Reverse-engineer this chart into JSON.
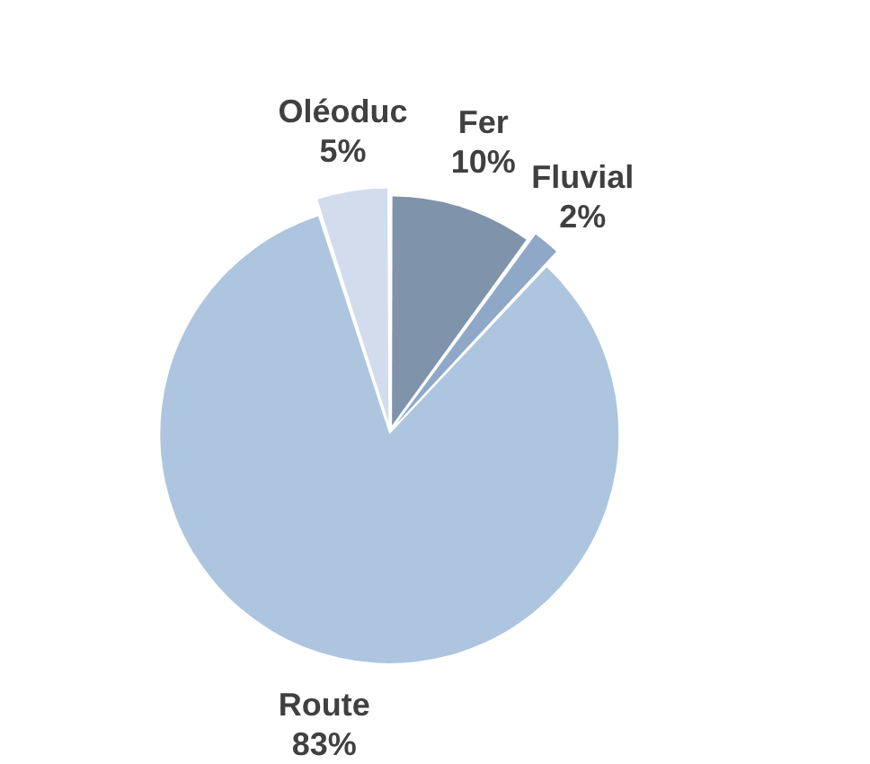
{
  "chart_data": {
    "type": "pie",
    "categories": [
      "Fer",
      "Fluvial",
      "Route",
      "Oléoduc"
    ],
    "values": [
      10,
      2,
      83,
      5
    ],
    "colors": [
      "#7f93ab",
      "#8fa8c8",
      "#adc5de",
      "#d2dced"
    ],
    "value_labels": [
      "10%",
      "2%",
      "83%",
      "5%"
    ],
    "legend": false
  }
}
